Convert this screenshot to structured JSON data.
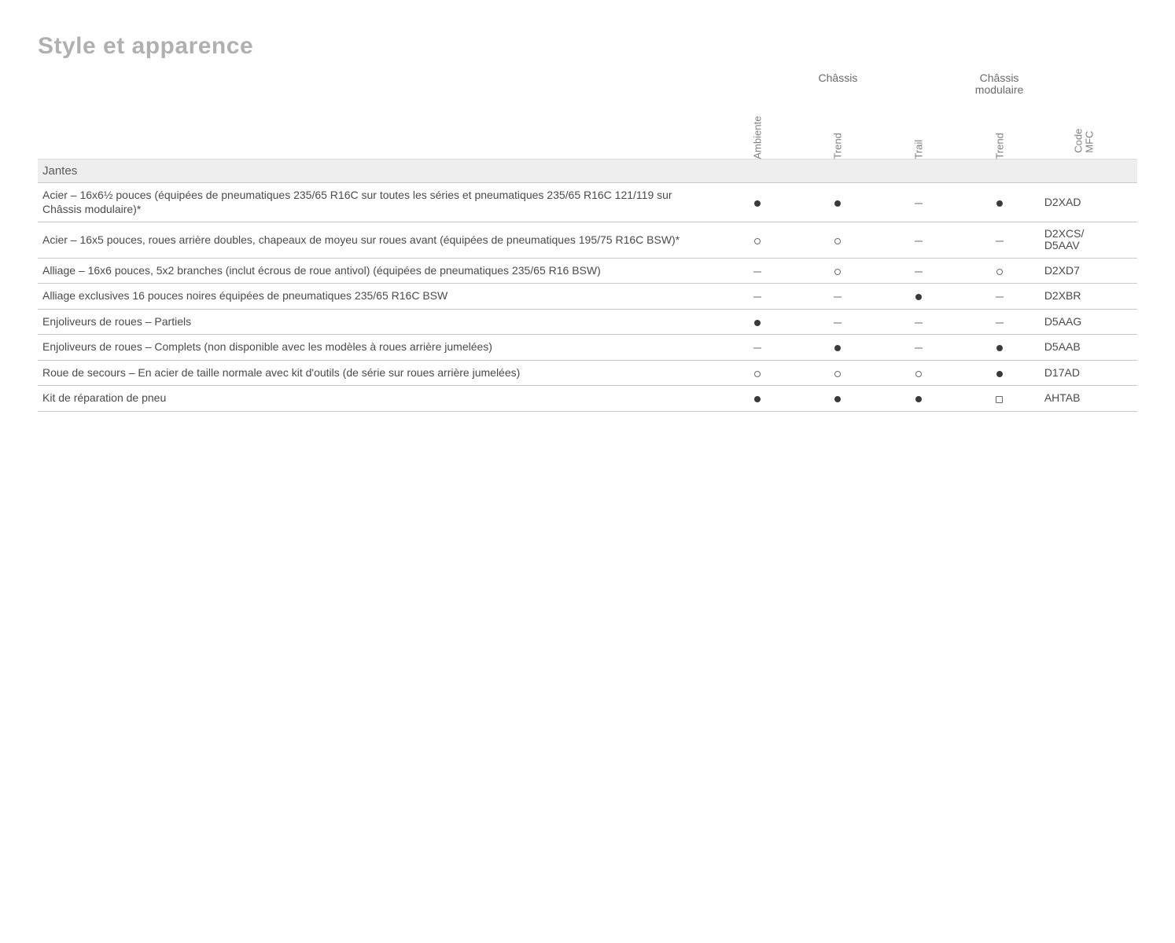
{
  "title": "Style et apparence",
  "colors": {
    "page_bg": "#ffffff",
    "title": "#b0b0b0",
    "header_text": "#6a6a6a",
    "rot_text": "#808080",
    "body_text": "#4a4a4a",
    "section_bg": "#eeeeee",
    "row_border": "#c9c9c9",
    "symbol_fill": "#3a3a3a",
    "symbol_stroke": "#6a6a6a",
    "dash": "#b5b5b5"
  },
  "columns": {
    "groups": [
      {
        "label": "Châssis",
        "span": 3
      },
      {
        "label": "Châssis\nmodulaire",
        "span": 1
      }
    ],
    "variants": [
      "Ambiente",
      "Trend",
      "Trail",
      "Trend"
    ],
    "code_header": "Code\nMFC"
  },
  "section": "Jantes",
  "symbols": {
    "filled": "●",
    "option": "○",
    "na": "–",
    "deselect": "□"
  },
  "rows": [
    {
      "desc": "Acier – 16x6½ pouces (équipées de pneumatiques 235/65 R16C sur toutes les séries et pneumatiques 235/65 R16C 121/119 sur Châssis modulaire)*",
      "v": [
        "filled",
        "filled",
        "na",
        "filled"
      ],
      "code": "D2XAD"
    },
    {
      "desc": "Acier – 16x5 pouces, roues arrière doubles, chapeaux de moyeu sur roues avant (équipées de pneumatiques 195/75 R16C BSW)*",
      "v": [
        "option",
        "option",
        "na",
        "na"
      ],
      "code": "D2XCS/\nD5AAV"
    },
    {
      "desc": "Alliage – 16x6 pouces, 5x2 branches (inclut écrous de roue antivol) (équipées de pneumatiques 235/65 R16 BSW)",
      "v": [
        "na",
        "option",
        "na",
        "option"
      ],
      "code": "D2XD7"
    },
    {
      "desc": "Alliage exclusives 16 pouces noires équipées de pneumatiques 235/65 R16C BSW",
      "v": [
        "na",
        "na",
        "filled",
        "na"
      ],
      "code": "D2XBR"
    },
    {
      "desc": "Enjoliveurs de roues – Partiels",
      "v": [
        "filled",
        "na",
        "na",
        "na"
      ],
      "code": "D5AAG"
    },
    {
      "desc": "Enjoliveurs de roues – Complets (non disponible avec les modèles à roues arrière jumelées)",
      "v": [
        "na",
        "filled",
        "na",
        "filled"
      ],
      "code": "D5AAB"
    },
    {
      "desc": "Roue de secours – En acier de taille normale avec kit d'outils (de série sur roues arrière jumelées)",
      "v": [
        "option",
        "option",
        "option",
        "filled"
      ],
      "code": "D17AD"
    },
    {
      "desc": "Kit de réparation de pneu",
      "v": [
        "filled",
        "filled",
        "filled",
        "deselect"
      ],
      "code": "AHTAB"
    }
  ]
}
